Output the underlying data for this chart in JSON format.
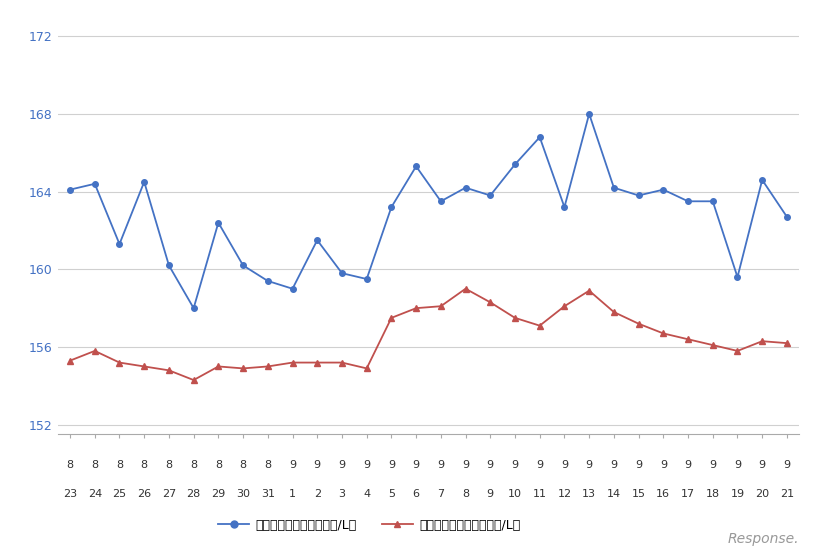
{
  "x_labels_top": [
    "8",
    "8",
    "8",
    "8",
    "8",
    "8",
    "8",
    "8",
    "8",
    "9",
    "9",
    "9",
    "9",
    "9",
    "9",
    "9",
    "9",
    "9",
    "9",
    "9",
    "9",
    "9",
    "9",
    "9",
    "9",
    "9",
    "9",
    "9",
    "9",
    "9"
  ],
  "x_labels_bottom": [
    "23",
    "24",
    "25",
    "26",
    "27",
    "28",
    "29",
    "30",
    "31",
    "1",
    "2",
    "3",
    "4",
    "5",
    "6",
    "7",
    "8",
    "9",
    "10",
    "11",
    "12",
    "13",
    "14",
    "15",
    "16",
    "17",
    "18",
    "19",
    "20",
    "21"
  ],
  "blue_values": [
    164.1,
    164.4,
    161.3,
    164.5,
    160.2,
    158.0,
    162.4,
    160.2,
    159.4,
    159.0,
    161.5,
    159.8,
    159.5,
    163.2,
    165.3,
    163.5,
    164.2,
    163.8,
    165.4,
    166.8,
    163.2,
    168.0,
    164.2,
    163.8,
    164.1,
    163.5,
    163.5,
    159.6,
    164.6,
    162.7
  ],
  "red_values": [
    155.3,
    155.8,
    155.2,
    155.0,
    154.8,
    154.3,
    155.0,
    154.9,
    155.0,
    155.2,
    155.2,
    155.2,
    154.9,
    157.5,
    158.0,
    158.1,
    159.0,
    158.3,
    157.5,
    157.1,
    158.1,
    158.9,
    157.8,
    157.2,
    156.7,
    156.4,
    156.1,
    155.8,
    156.3,
    156.2
  ],
  "blue_color": "#4472C4",
  "red_color": "#C0504D",
  "ylim": [
    151.5,
    173
  ],
  "yticks": [
    152,
    156,
    160,
    164,
    168,
    172
  ],
  "legend_blue": "レギュラー看板価格（円/L）",
  "legend_red": "レギュラー実売価格（円/L）",
  "background_color": "#ffffff",
  "grid_color": "#d0d0d0"
}
